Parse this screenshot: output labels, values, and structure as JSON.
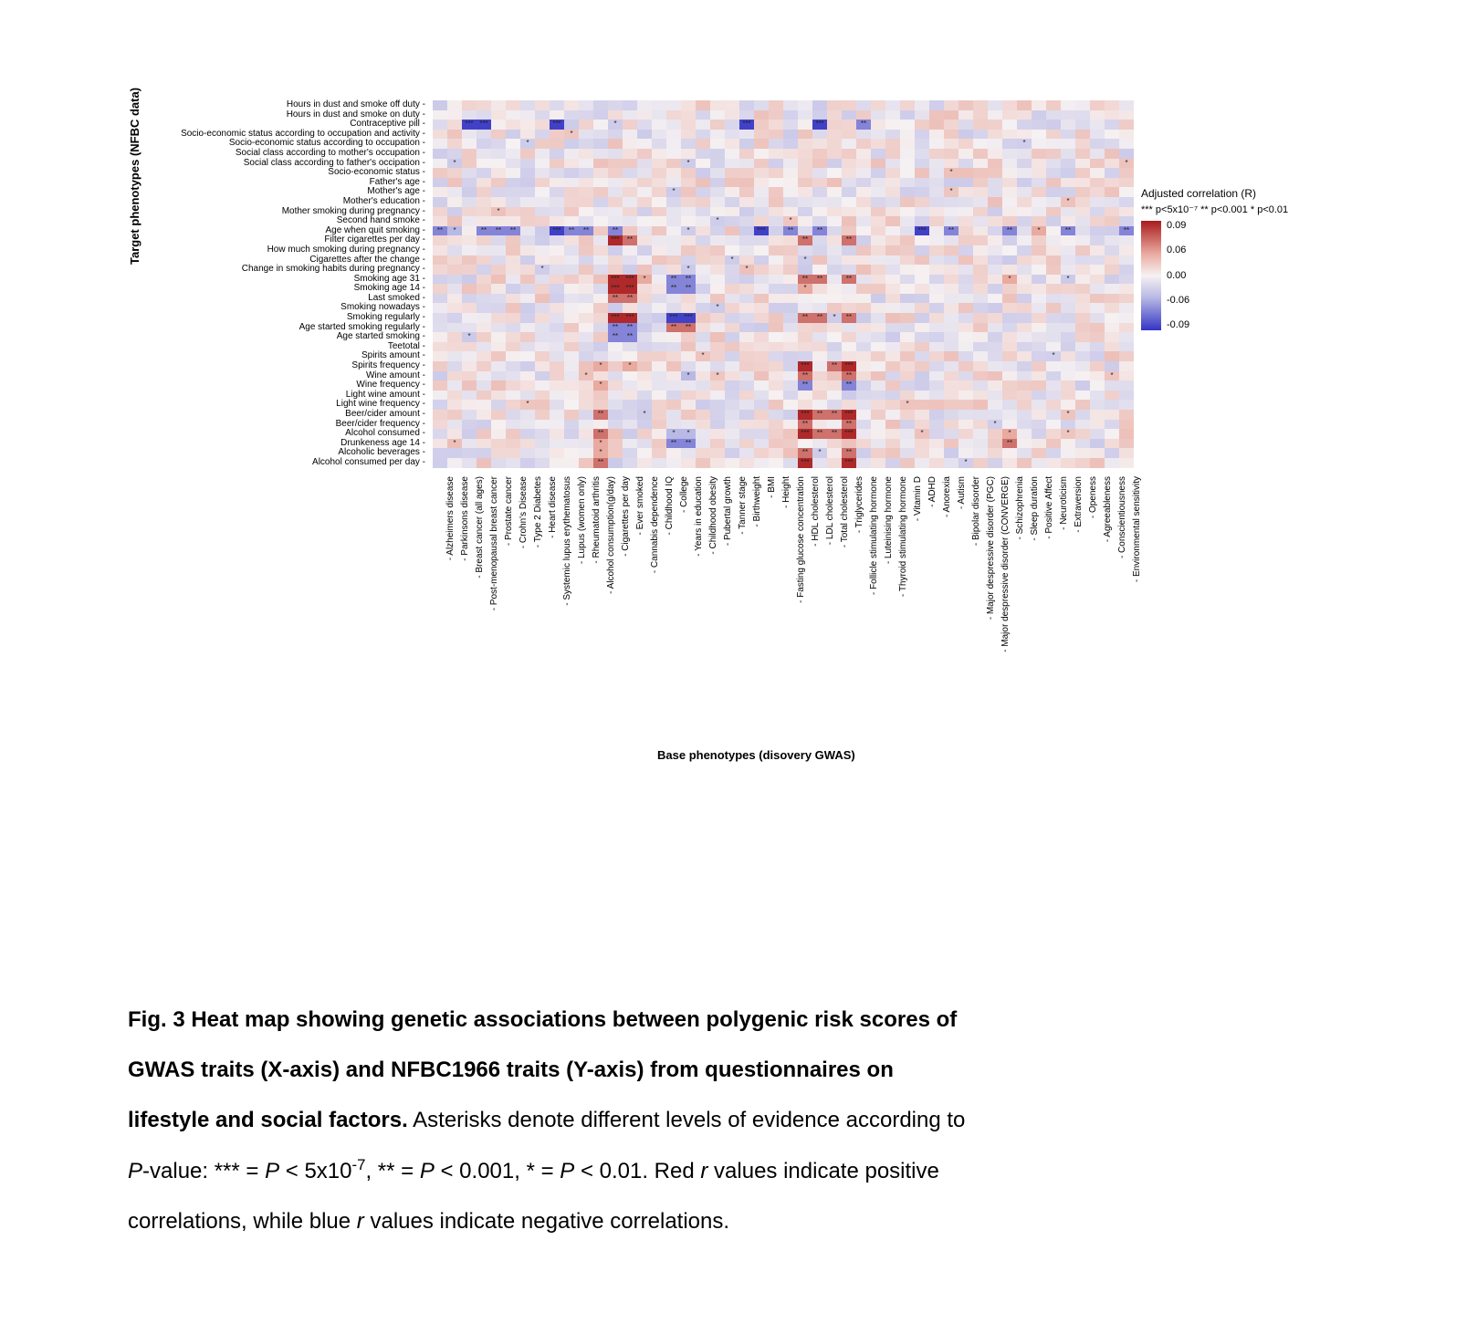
{
  "figure": {
    "y_axis_title": "Target phenotypes (NFBC data)",
    "x_axis_title": "Base phenotypes (disovery GWAS)",
    "y_labels": [
      "Hours in dust and smoke off duty",
      "Hours in dust and smoke on duty",
      "Contraceptive pill",
      "Socio-economic status according to occupation and activity",
      "Socio-economic status according to occupation",
      "Social class according to mother's occupation",
      "Social class according to father's occipation",
      "Socio-economic status",
      "Father's age",
      "Mother's age",
      "Mother's education",
      "Mother smoking during pregnancy",
      "Second hand smoke",
      "Age when quit smoking",
      "Filter cigarettes per day",
      "How much smoking during pregnancy",
      "Cigarettes after the change",
      "Change in smoking habits during pregnancy",
      "Smoking age 31",
      "Smoking age 14",
      "Last smoked",
      "Smoking nowadays",
      "Smoking regularly",
      "Age started smoking regularly",
      "Age started smoking",
      "Teetotal",
      "Spirits amount",
      "Spirits frequency",
      "Wine amount",
      "Wine frequency",
      "Light wine amount",
      "Light wine frequency",
      "Beer/cider amount",
      "Beer/cider frequency",
      "Alcohol consumed",
      "Drunkeness age 14",
      "Alcoholic beverages",
      "Alcohol consumed per day"
    ],
    "x_labels": [
      "Alzheimers disease",
      "Parkinsons disease",
      "Breast cancer (all ages)",
      "Post-menopausal breast cancer",
      "Prostate cancer",
      "Crohn's Disease",
      "Type 2 Diabetes",
      "Heart disease",
      "Systemic lupus erythematosus",
      "Lupus (women only)",
      "Rheumatoid arthritis",
      "Alcohol consumption(g/day)",
      "Cigarettes per day",
      "Ever smoked",
      "Cannabis dependence",
      "Childhood IQ",
      "College",
      "Years in education",
      "Childhood obesity",
      "Pubertal growth",
      "Tanner stage",
      "Birthweight",
      "BMI",
      "Height",
      "Fasting glucose concentration",
      "HDL cholesterol",
      "LDL cholesterol",
      "Total cholesterol",
      "Triglycerides",
      "Follicle stimulating hormone",
      "Luteinising hormone",
      "Thyroid stimulating hormone",
      "Vitamin D",
      "ADHD",
      "Anorexia",
      "Autism",
      "Bipolar disorder",
      "Major despressive disorder (PGC)",
      "Major despressive disorder (CONVERGE)",
      "Schizophrenia",
      "Sleep duration",
      "Positive Affect",
      "Neuroticism",
      "Extraversion",
      "Openess",
      "Agreeableness",
      "Conscientiousness",
      "Environmental sensitivity"
    ],
    "legend": {
      "title": "Adjusted correlation (R)",
      "subtitle": "*** p<5x10⁻⁷ ** p<0.001 * p<0.01",
      "ticks": [
        "0.09",
        "0.06",
        "0.00",
        "-0.06",
        "-0.09"
      ],
      "color_high": "#a91b1d",
      "color_midhigh": "#e9aaa0",
      "color_mid": "#f6f1f2",
      "color_midlow": "#b9b9e5",
      "color_low": "#3434c5"
    },
    "heatmap_specials": {
      "2": {
        "2": "n3",
        "3": "n3",
        "8": "n3",
        "21": "n3",
        "26": "n3",
        "29": "n2"
      },
      "13": {
        "0": "n2",
        "1": "n1",
        "3": "n2",
        "4": "n2",
        "5": "n2",
        "8": "n3",
        "9": "n2",
        "10": "n2",
        "12": "n2",
        "22": "n3",
        "24": "n2",
        "26": "n2",
        "33": "n3",
        "35": "n2",
        "39": "n2",
        "41": "p1",
        "43": "n2",
        "47": "n2"
      },
      "14": {
        "12": "p3",
        "13": "p2",
        "25": "p2",
        "28": "p2"
      },
      "18": {
        "12": "p3",
        "13": "p3",
        "14": "p1",
        "16": "n2",
        "17": "n2",
        "25": "p2",
        "26": "p2",
        "28": "p2",
        "39": "p1"
      },
      "19": {
        "12": "p3",
        "13": "p3",
        "16": "n2",
        "17": "n2",
        "25": "p1"
      },
      "20": {
        "12": "p2",
        "13": "p2"
      },
      "22": {
        "12": "p3",
        "13": "p3",
        "16": "n3",
        "17": "n3",
        "25": "p2",
        "26": "p2",
        "28": "p2"
      },
      "23": {
        "12": "n2",
        "13": "n2",
        "16": "p2",
        "17": "p2"
      },
      "24": {
        "12": "n2",
        "13": "n2"
      },
      "27": {
        "11": "p1",
        "13": "p1",
        "25": "p3",
        "27": "p2",
        "28": "p3"
      },
      "28": {
        "17": "n1",
        "25": "p2",
        "28": "p2"
      },
      "29": {
        "11": "p1",
        "25": "n2",
        "28": "n2"
      },
      "32": {
        "11": "p2",
        "25": "p3",
        "26": "p2",
        "27": "p2",
        "28": "p3"
      },
      "33": {
        "25": "p2",
        "28": "p2"
      },
      "34": {
        "11": "p2",
        "16": "n1",
        "17": "n1",
        "25": "p3",
        "26": "p2",
        "27": "p2",
        "28": "p3",
        "39": "p1"
      },
      "35": {
        "11": "p1",
        "16": "n2",
        "17": "n2",
        "39": "p2"
      },
      "36": {
        "11": "p1",
        "25": "p2",
        "28": "p2"
      },
      "37": {
        "11": "p2",
        "25": "p3",
        "28": "p3"
      }
    }
  },
  "caption": {
    "bold1": "Fig. 3 Heat map showing genetic associations between polygenic risk scores of",
    "bold2": "GWAS traits (X-axis) and NFBC1966 traits (Y-axis) from questionnaires on",
    "bold3": "lifestyle and social factors.",
    "text1": " Asterisks denote different levels of evidence according to",
    "p_italic": "P",
    "text2": "-value: *** = ",
    "text3": " < 5x10",
    "sup7": "-7",
    "text4": ", ** = ",
    "text5": " < 0.001, * = ",
    "text6": " < 0.01. Red ",
    "r_italic": "r ",
    "text7": " values indicate positive",
    "text8": "correlations, while blue ",
    "text9": " values indicate negative correlations."
  }
}
